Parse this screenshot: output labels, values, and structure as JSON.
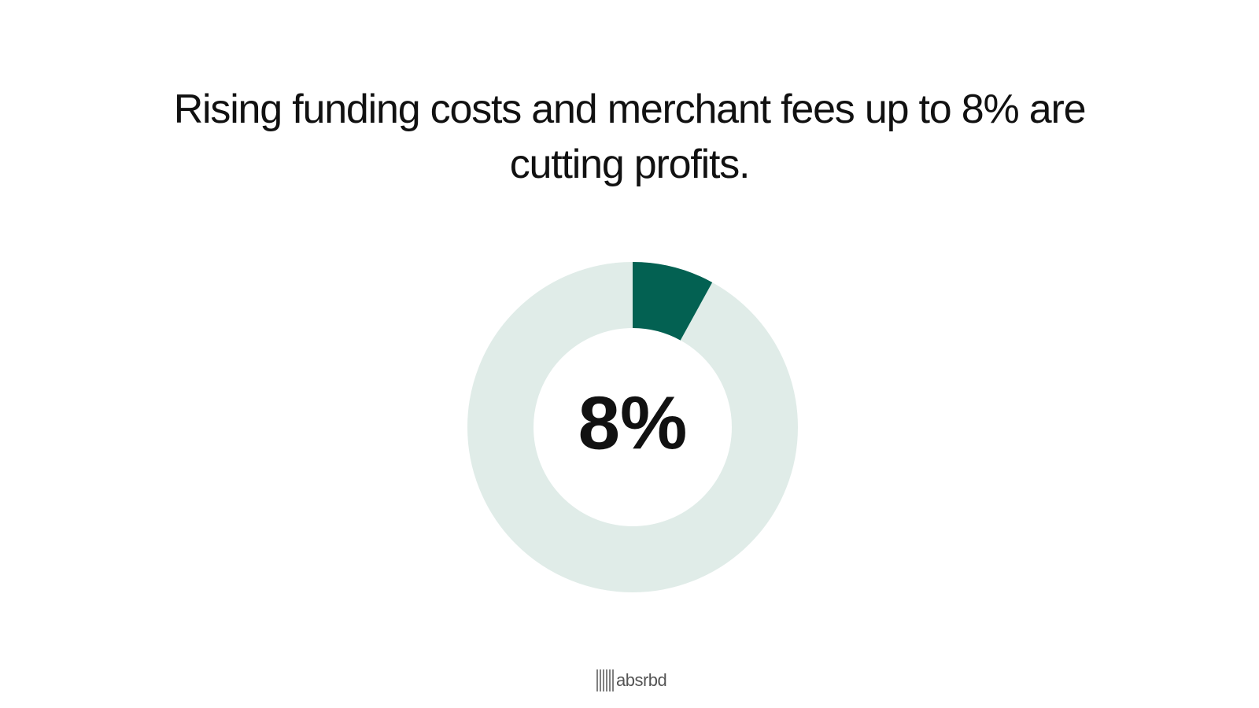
{
  "chart_data": {
    "type": "donut",
    "title": "Rising funding costs and merchant fees up to 8% are cutting profits.",
    "values": [
      8
    ],
    "value_labels": [
      "8%"
    ],
    "color": "#036152",
    "track_color": "#e0ece8"
  },
  "brand": "absrbd"
}
